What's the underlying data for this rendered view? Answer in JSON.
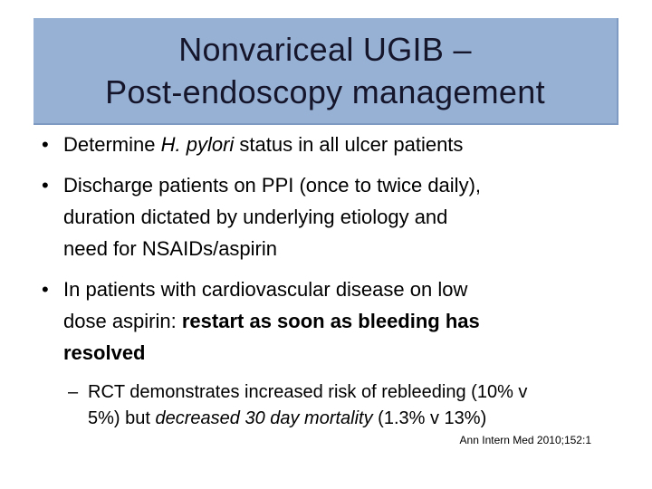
{
  "slide": {
    "title": {
      "line1": "Nonvariceal UGIB –",
      "line2": "Post-endoscopy management"
    },
    "markers": {
      "bullet": "•",
      "dash": "–"
    },
    "bullets": [
      {
        "lines": [
          [
            {
              "t": "Determine "
            },
            {
              "t": "H. pylori",
              "style": "italic"
            },
            {
              "t": " status in all ulcer patients"
            }
          ]
        ]
      },
      {
        "lines": [
          [
            {
              "t": "Discharge patients on PPI (once to twice daily),"
            }
          ],
          [
            {
              "t": "duration dictated by underlying etiology and"
            }
          ],
          [
            {
              "t": "need for NSAIDs/aspirin"
            }
          ]
        ]
      },
      {
        "lines": [
          [
            {
              "t": "In patients with cardiovascular disease on low"
            }
          ],
          [
            {
              "t": "dose aspirin: "
            },
            {
              "t": "restart as soon as bleeding has",
              "style": "bold"
            }
          ],
          [
            {
              "t": "resolved",
              "style": "bold"
            }
          ]
        ]
      }
    ],
    "sub_bullet": {
      "lines": [
        [
          {
            "t": "RCT demonstrates increased risk of rebleeding (10% v"
          }
        ],
        [
          {
            "t": "5%) but "
          },
          {
            "t": "decreased 30 day mortality",
            "style": "italic"
          },
          {
            "t": " (1.3% v 13%)"
          }
        ]
      ]
    },
    "citation": "Ann Intern Med 2010;152:1",
    "colors": {
      "background": "#ffffff",
      "title_bg": "#97b1d4",
      "title_edge": "#7e9ac2",
      "title_text": "#15152b",
      "body_text": "#000000"
    }
  }
}
